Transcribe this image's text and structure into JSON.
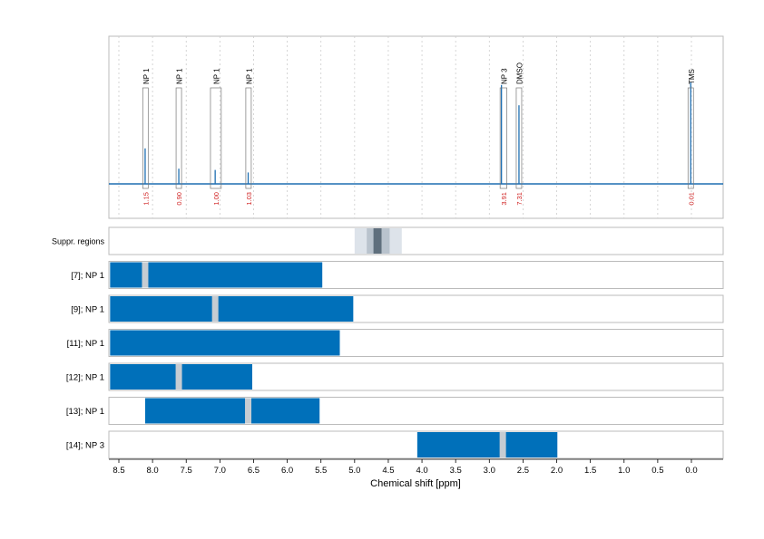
{
  "chart_data": {
    "type": "nmr_spectrum_with_integration_bars",
    "x_axis": {
      "label": "Chemical shift [ppm]",
      "reversed": true,
      "range": [
        8.5,
        0.0
      ],
      "ticks": [
        "8.5",
        "8.0",
        "7.5",
        "7.0",
        "6.5",
        "6.0",
        "5.5",
        "5.0",
        "4.5",
        "4.0",
        "3.5",
        "3.0",
        "2.5",
        "2.0",
        "1.5",
        "1.0",
        "0.5",
        "0.0"
      ]
    },
    "spectrum": {
      "color": "#1f6fb2",
      "peaks": [
        {
          "ppm": 8.11,
          "height": 0.28
        },
        {
          "ppm": 7.61,
          "height": 0.12
        },
        {
          "ppm": 7.07,
          "height": 0.11
        },
        {
          "ppm": 6.58,
          "height": 0.09
        },
        {
          "ppm": 2.82,
          "height": 0.78
        },
        {
          "ppm": 2.56,
          "height": 0.62
        },
        {
          "ppm": 0.01,
          "height": 0.8
        }
      ]
    },
    "annotations": [
      {
        "label": "NP 1",
        "integral": "1.15",
        "ppm_from": 8.14,
        "ppm_to": 8.07
      },
      {
        "label": "NP 1",
        "integral": "0.90",
        "ppm_from": 7.64,
        "ppm_to": 7.58
      },
      {
        "label": "NP 1",
        "integral": "1.00",
        "ppm_from": 7.14,
        "ppm_to": 6.98
      },
      {
        "label": "NP 1",
        "integral": "1.03",
        "ppm_from": 6.6,
        "ppm_to": 6.55
      },
      {
        "label": "NP 3",
        "integral": "3.91",
        "ppm_from": 2.84,
        "ppm_to": 2.74
      },
      {
        "label": "DMSO",
        "integral": "7.31",
        "ppm_from": 2.6,
        "ppm_to": 2.52
      },
      {
        "label": "TMS",
        "integral": "0.01",
        "ppm_from": 0.03,
        "ppm_to": -0.01
      }
    ],
    "suppression_regions": {
      "label": "Suppr. regions",
      "bands": [
        {
          "ppm_from": 5.0,
          "ppm_to": 4.3,
          "shade": "#dde3ea"
        },
        {
          "ppm_from": 4.82,
          "ppm_to": 4.48,
          "shade": "#b9c3cd"
        },
        {
          "ppm_from": 4.72,
          "ppm_to": 4.6,
          "shade": "#5f6f7d"
        }
      ]
    },
    "rows": [
      {
        "label": "[7]; NP 1",
        "ppm_from": 8.63,
        "ppm_to": 5.48,
        "peak_ppm": [
          8.11
        ]
      },
      {
        "label": "[9]; NP 1",
        "ppm_from": 8.63,
        "ppm_to": 5.02,
        "peak_ppm": [
          7.07
        ]
      },
      {
        "label": "[11]; NP 1",
        "ppm_from": 8.63,
        "ppm_to": 5.22,
        "peak_ppm": []
      },
      {
        "label": "[12]; NP 1",
        "ppm_from": 8.63,
        "ppm_to": 6.52,
        "peak_ppm": [
          7.61
        ]
      },
      {
        "label": "[13]; NP 1",
        "ppm_from": 8.11,
        "ppm_to": 5.52,
        "peak_ppm": [
          6.58
        ]
      },
      {
        "label": "[14]; NP 3",
        "ppm_from": 4.07,
        "ppm_to": 1.99,
        "peak_ppm": [
          2.8
        ]
      }
    ],
    "colors": {
      "bar": "#0070ba",
      "peak_marker": "#c6ccd2",
      "annotation_value": "#d02020",
      "grid": "#cccccc",
      "frame": "#bbbbbb"
    }
  }
}
